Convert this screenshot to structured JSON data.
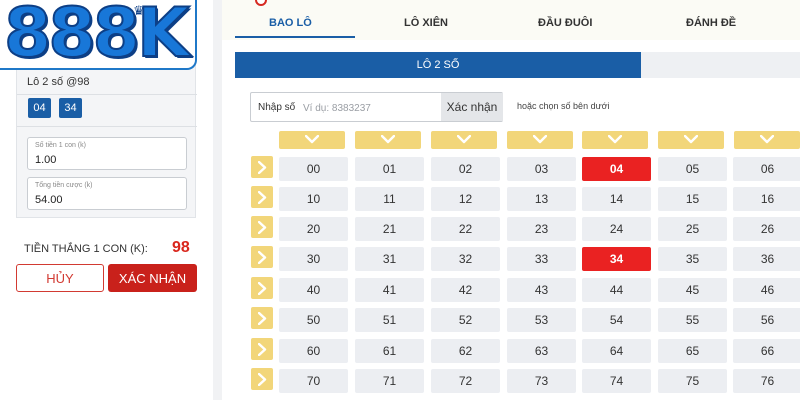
{
  "brand": {
    "logo_text": "888K"
  },
  "colors": {
    "primary": "#1a5ea6",
    "danger": "#d23a32",
    "selected": "#ea2222",
    "picker": "#f2d67a",
    "cell": "#eceef2"
  },
  "left": {
    "bet_title": "Lô 2 số @98",
    "chips": [
      "04",
      "34"
    ],
    "field1": {
      "label": "Số tiền 1 con (k)",
      "value": "1.00"
    },
    "field2": {
      "label": "Tổng tiền cược (k)",
      "value": "54.00"
    },
    "win_label": "TIỀN THẮNG 1 CON (K):",
    "win_value": "98",
    "cancel_label": "HỦY",
    "confirm_label": "XÁC NHẬN"
  },
  "tabs": [
    "BAO LÔ",
    "LÔ XIÊN",
    "ĐẦU ĐUÔI",
    "ĐÁNH ĐỀ"
  ],
  "subtab": "LÔ 2 SỐ",
  "number_input": {
    "prefix": "Nhập số",
    "placeholder": "Ví dụ: 8383237",
    "button": "Xác nhận"
  },
  "hint": {
    "pre": "hoặc ",
    "link": "chọn số bên dưới"
  },
  "grid": {
    "columns": 7,
    "rows": [
      [
        "00",
        "01",
        "02",
        "03",
        "04",
        "05",
        "06"
      ],
      [
        "10",
        "11",
        "12",
        "13",
        "14",
        "15",
        "16"
      ],
      [
        "20",
        "21",
        "22",
        "23",
        "24",
        "25",
        "26"
      ],
      [
        "30",
        "31",
        "32",
        "33",
        "34",
        "35",
        "36"
      ],
      [
        "40",
        "41",
        "42",
        "43",
        "44",
        "45",
        "46"
      ],
      [
        "50",
        "51",
        "52",
        "53",
        "54",
        "55",
        "56"
      ],
      [
        "60",
        "61",
        "62",
        "63",
        "64",
        "65",
        "66"
      ],
      [
        "70",
        "71",
        "72",
        "73",
        "74",
        "75",
        "76"
      ]
    ],
    "selected": [
      "04",
      "34"
    ]
  }
}
